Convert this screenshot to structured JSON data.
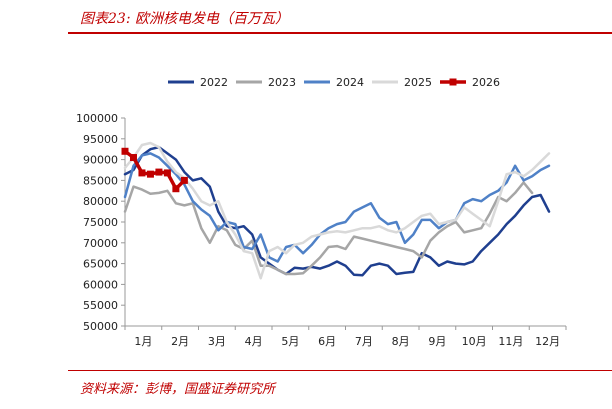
{
  "header": {
    "title": "图表23: 欧洲核电发电（百万瓦）"
  },
  "footer": {
    "source": "资料来源：彭博，国盛证券研究所"
  },
  "colors": {
    "accent": "#c00000"
  },
  "chart_data": {
    "type": "line",
    "title": "",
    "xlabel": "",
    "ylabel": "",
    "x_ticks": [
      "1月",
      "2月",
      "3月",
      "4月",
      "5月",
      "6月",
      "7月",
      "8月",
      "9月",
      "10月",
      "11月",
      "12月"
    ],
    "y_ticks": [
      "100000",
      "95000",
      "90000",
      "85000",
      "80000",
      "75000",
      "70000",
      "65000",
      "60000",
      "55000",
      "50000"
    ],
    "ylim": [
      50000,
      100000
    ],
    "xlim": [
      1,
      53
    ],
    "x_unit": "week",
    "grid": false,
    "legend": "top",
    "series": [
      {
        "name": "2022",
        "color": "#1f3f8f",
        "width": 2.5,
        "x": [
          1,
          2,
          3,
          4,
          5,
          6,
          7,
          8,
          9,
          10,
          11,
          12,
          13,
          14,
          15,
          16,
          17,
          18,
          19,
          20,
          21,
          22,
          23,
          24,
          25,
          26,
          27,
          28,
          29,
          30,
          31,
          32,
          33,
          34,
          35,
          36,
          37,
          38,
          39,
          40,
          41,
          42,
          43,
          44,
          45,
          46,
          47,
          48,
          49,
          50,
          51,
          52
        ],
        "values": [
          86500,
          87500,
          91000,
          92500,
          93000,
          91500,
          90000,
          87000,
          85000,
          85500,
          83500,
          77500,
          74000,
          73500,
          74000,
          72000,
          66500,
          65000,
          63500,
          62500,
          64000,
          63800,
          64200,
          63800,
          64500,
          65500,
          64500,
          62300,
          62200,
          64500,
          65000,
          64500,
          62500,
          62800,
          63000,
          67500,
          66500,
          64500,
          65500,
          65000,
          64800,
          65500,
          68000,
          70000,
          72000,
          74500,
          76500,
          79000,
          81000,
          81500,
          77500,
          null
        ]
      },
      {
        "name": "2023",
        "color": "#a6a6a6",
        "width": 2.5,
        "x": [
          1,
          2,
          3,
          4,
          5,
          6,
          7,
          8,
          9,
          10,
          11,
          12,
          13,
          14,
          15,
          16,
          17,
          18,
          19,
          20,
          21,
          22,
          23,
          24,
          25,
          26,
          27,
          28,
          29,
          30,
          31,
          32,
          33,
          34,
          35,
          36,
          37,
          38,
          39,
          40,
          41,
          42,
          43,
          44,
          45,
          46,
          47,
          48,
          49,
          50,
          51,
          52
        ],
        "values": [
          77500,
          83500,
          82800,
          81800,
          82000,
          82500,
          79500,
          79000,
          79500,
          73500,
          70000,
          74000,
          73000,
          69500,
          68500,
          70500,
          64500,
          64500,
          63500,
          62500,
          62500,
          62700,
          64500,
          66500,
          69000,
          69200,
          68500,
          71500,
          71000,
          70500,
          70000,
          69500,
          69000,
          68500,
          68000,
          66500,
          70500,
          72500,
          74000,
          75000,
          72500,
          73000,
          73500,
          77000,
          81000,
          80000,
          82000,
          84500,
          82000,
          null,
          null,
          null
        ]
      },
      {
        "name": "2024",
        "color": "#4f81c7",
        "width": 2.5,
        "x": [
          1,
          2,
          3,
          4,
          5,
          6,
          7,
          8,
          9,
          10,
          11,
          12,
          13,
          14,
          15,
          16,
          17,
          18,
          19,
          20,
          21,
          22,
          23,
          24,
          25,
          26,
          27,
          28,
          29,
          30,
          31,
          32,
          33,
          34,
          35,
          36,
          37,
          38,
          39,
          40,
          41,
          42,
          43,
          44,
          45,
          46,
          47,
          48,
          49,
          50,
          51,
          52
        ],
        "values": [
          81000,
          88500,
          91000,
          91500,
          90500,
          88500,
          86500,
          84000,
          80000,
          78000,
          76500,
          73000,
          75000,
          74500,
          69000,
          68500,
          72000,
          66500,
          65500,
          69000,
          69500,
          67500,
          69500,
          72000,
          73500,
          74500,
          75000,
          77500,
          78500,
          79500,
          76000,
          74500,
          75000,
          70000,
          72000,
          75500,
          75500,
          73500,
          75000,
          75500,
          79500,
          80500,
          80000,
          81500,
          82500,
          84500,
          88500,
          85000,
          86000,
          87500,
          88500,
          null
        ]
      },
      {
        "name": "2025",
        "color": "#d9d9d9",
        "width": 2.5,
        "x": [
          1,
          2,
          3,
          4,
          5,
          6,
          7,
          8,
          9,
          10,
          11,
          12,
          13,
          14,
          15,
          16,
          17,
          18,
          19,
          20,
          21,
          22,
          23,
          24,
          25,
          26,
          27,
          28,
          29,
          30,
          31,
          32,
          33,
          34,
          35,
          36,
          37,
          38,
          39,
          40,
          41,
          42,
          43,
          44,
          45,
          46,
          47,
          48,
          49,
          50,
          51,
          52
        ],
        "values": [
          88000,
          90500,
          93500,
          94000,
          93000,
          89500,
          87000,
          85500,
          83000,
          80000,
          79000,
          80000,
          75000,
          72000,
          68000,
          67500,
          61500,
          68000,
          69000,
          67500,
          69500,
          70000,
          71500,
          72000,
          72500,
          72800,
          72500,
          73000,
          73500,
          73500,
          74000,
          73000,
          72500,
          73500,
          75000,
          76500,
          77000,
          74500,
          75000,
          75500,
          78500,
          77000,
          75500,
          74000,
          80000,
          86500,
          87000,
          86000,
          87500,
          89500,
          91500,
          null
        ]
      },
      {
        "name": "2026",
        "color": "#c00000",
        "width": 3.5,
        "markers": true,
        "x": [
          1,
          2,
          3,
          4,
          5,
          6,
          7,
          8,
          9,
          10
        ],
        "values": [
          92000,
          90500,
          86800,
          86500,
          87000,
          86800,
          83000,
          85000,
          null,
          null
        ]
      }
    ]
  }
}
